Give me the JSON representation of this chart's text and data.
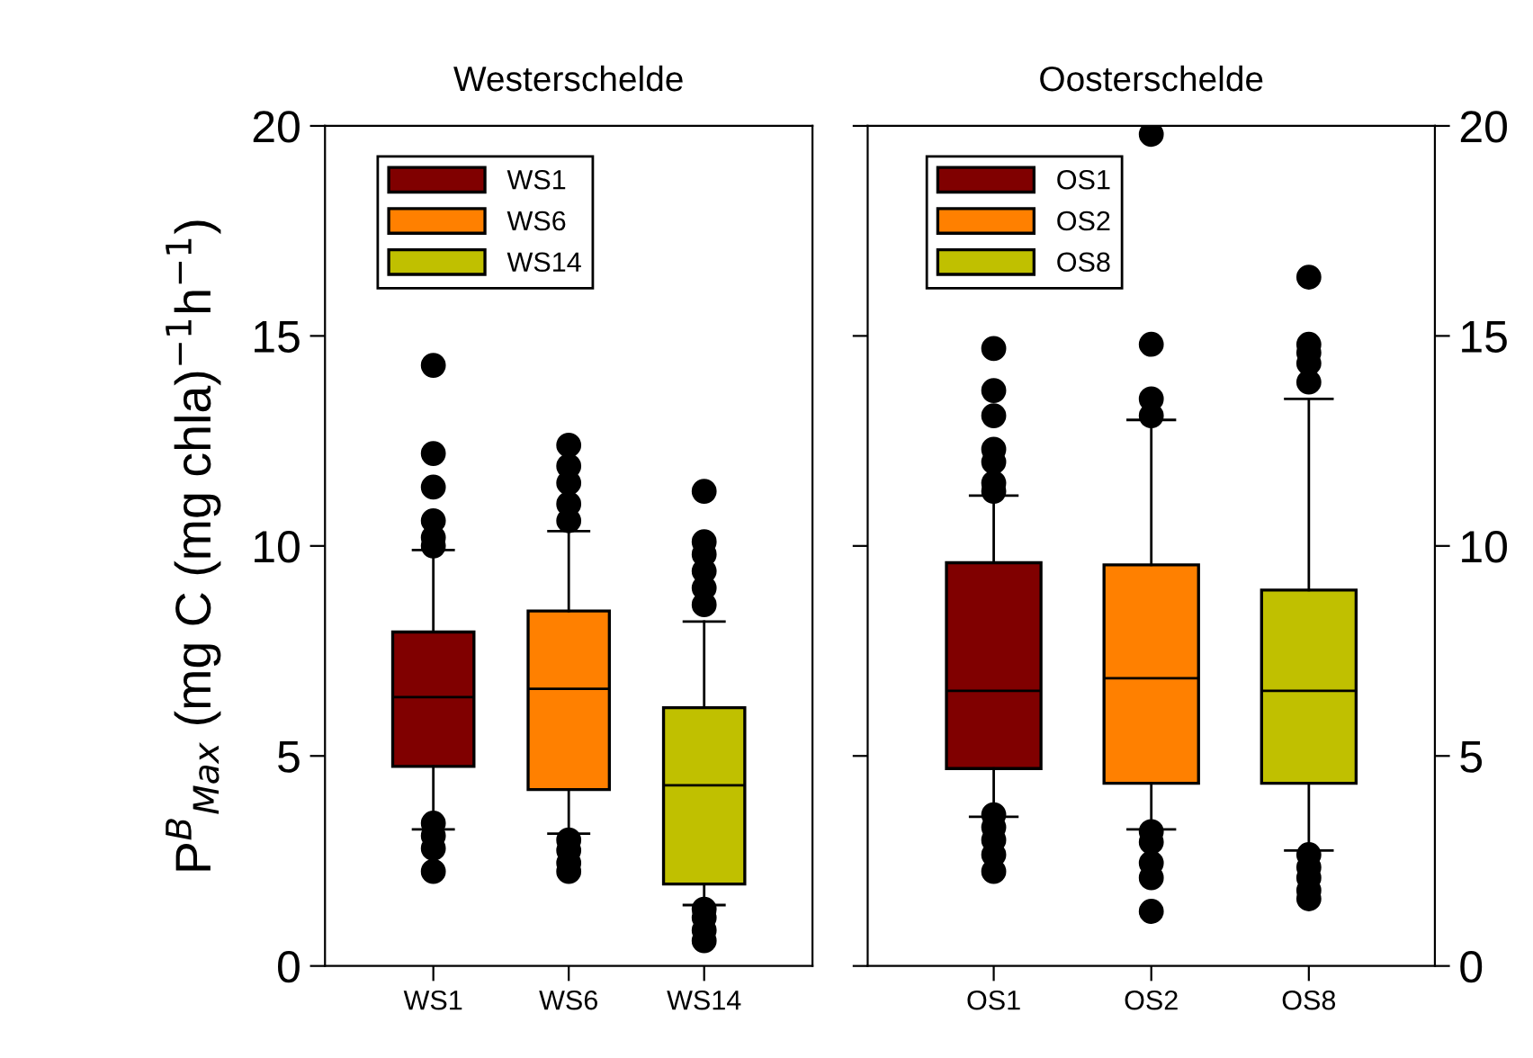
{
  "chart_data": [
    {
      "type": "box",
      "title": "Westerschelde",
      "ylabel": "P$^{B}$$_{Max}$ (mg C (mg chla)$^{−1}$h$^{−1}$)",
      "categories": [
        "WS1",
        "WS6",
        "WS14"
      ],
      "legend": "top left",
      "ylim": [
        0,
        20
      ],
      "yticks": [
        0,
        5,
        10,
        15,
        20
      ],
      "series": [
        {
          "name": "WS1",
          "color": "#800000",
          "boxes": [
            {
              "low": 3.25,
              "q1": 4.75,
              "median": 6.4,
              "q3": 7.95,
              "high": 9.9,
              "outliers": [
                14.3,
                12.2,
                11.4,
                10.6,
                10.2,
                10.0,
                3.4,
                3.1,
                2.8,
                2.25
              ]
            },
            null,
            null
          ]
        },
        {
          "name": "WS6",
          "color": "#ff8000",
          "boxes": [
            null,
            {
              "low": 3.15,
              "q1": 4.2,
              "median": 6.6,
              "q3": 8.45,
              "high": 10.35,
              "outliers": [
                12.4,
                11.9,
                11.5,
                11.0,
                10.6,
                3.0,
                2.75,
                2.45,
                2.25
              ]
            },
            null
          ]
        },
        {
          "name": "WS14",
          "color": "#c0c000",
          "boxes": [
            null,
            null,
            {
              "low": 1.45,
              "q1": 1.95,
              "median": 4.3,
              "q3": 6.15,
              "high": 8.2,
              "outliers": [
                11.3,
                10.1,
                9.8,
                9.4,
                9.0,
                8.6,
                1.35,
                1.15,
                0.85,
                0.6
              ]
            }
          ]
        }
      ]
    },
    {
      "type": "box",
      "title": "Oosterschelde",
      "categories": [
        "OS1",
        "OS2",
        "OS8"
      ],
      "legend": "top left",
      "ylim": [
        0,
        20
      ],
      "yticks": [
        0,
        5,
        10,
        15,
        20
      ],
      "series": [
        {
          "name": "OS1",
          "color": "#800000",
          "boxes": [
            {
              "low": 3.55,
              "q1": 4.7,
              "median": 6.55,
              "q3": 9.6,
              "high": 11.2,
              "outliers": [
                14.7,
                13.7,
                13.1,
                12.3,
                12.0,
                11.5,
                11.3,
                3.6,
                3.3,
                3.0,
                2.65,
                2.25
              ]
            },
            null,
            null
          ]
        },
        {
          "name": "OS2",
          "color": "#ff8000",
          "boxes": [
            null,
            {
              "low": 3.25,
              "q1": 4.35,
              "median": 6.85,
              "q3": 9.55,
              "high": 13.0,
              "outliers": [
                19.8,
                14.8,
                13.5,
                13.1,
                3.2,
                2.95,
                2.45,
                2.1,
                1.3
              ]
            },
            null
          ]
        },
        {
          "name": "OS8",
          "color": "#c0c000",
          "boxes": [
            null,
            null,
            {
              "low": 2.75,
              "q1": 4.35,
              "median": 6.55,
              "q3": 8.95,
              "high": 13.5,
              "outliers": [
                16.4,
                14.8,
                14.6,
                14.35,
                13.9,
                2.65,
                2.35,
                2.1,
                1.8,
                1.6
              ]
            }
          ]
        }
      ]
    }
  ]
}
